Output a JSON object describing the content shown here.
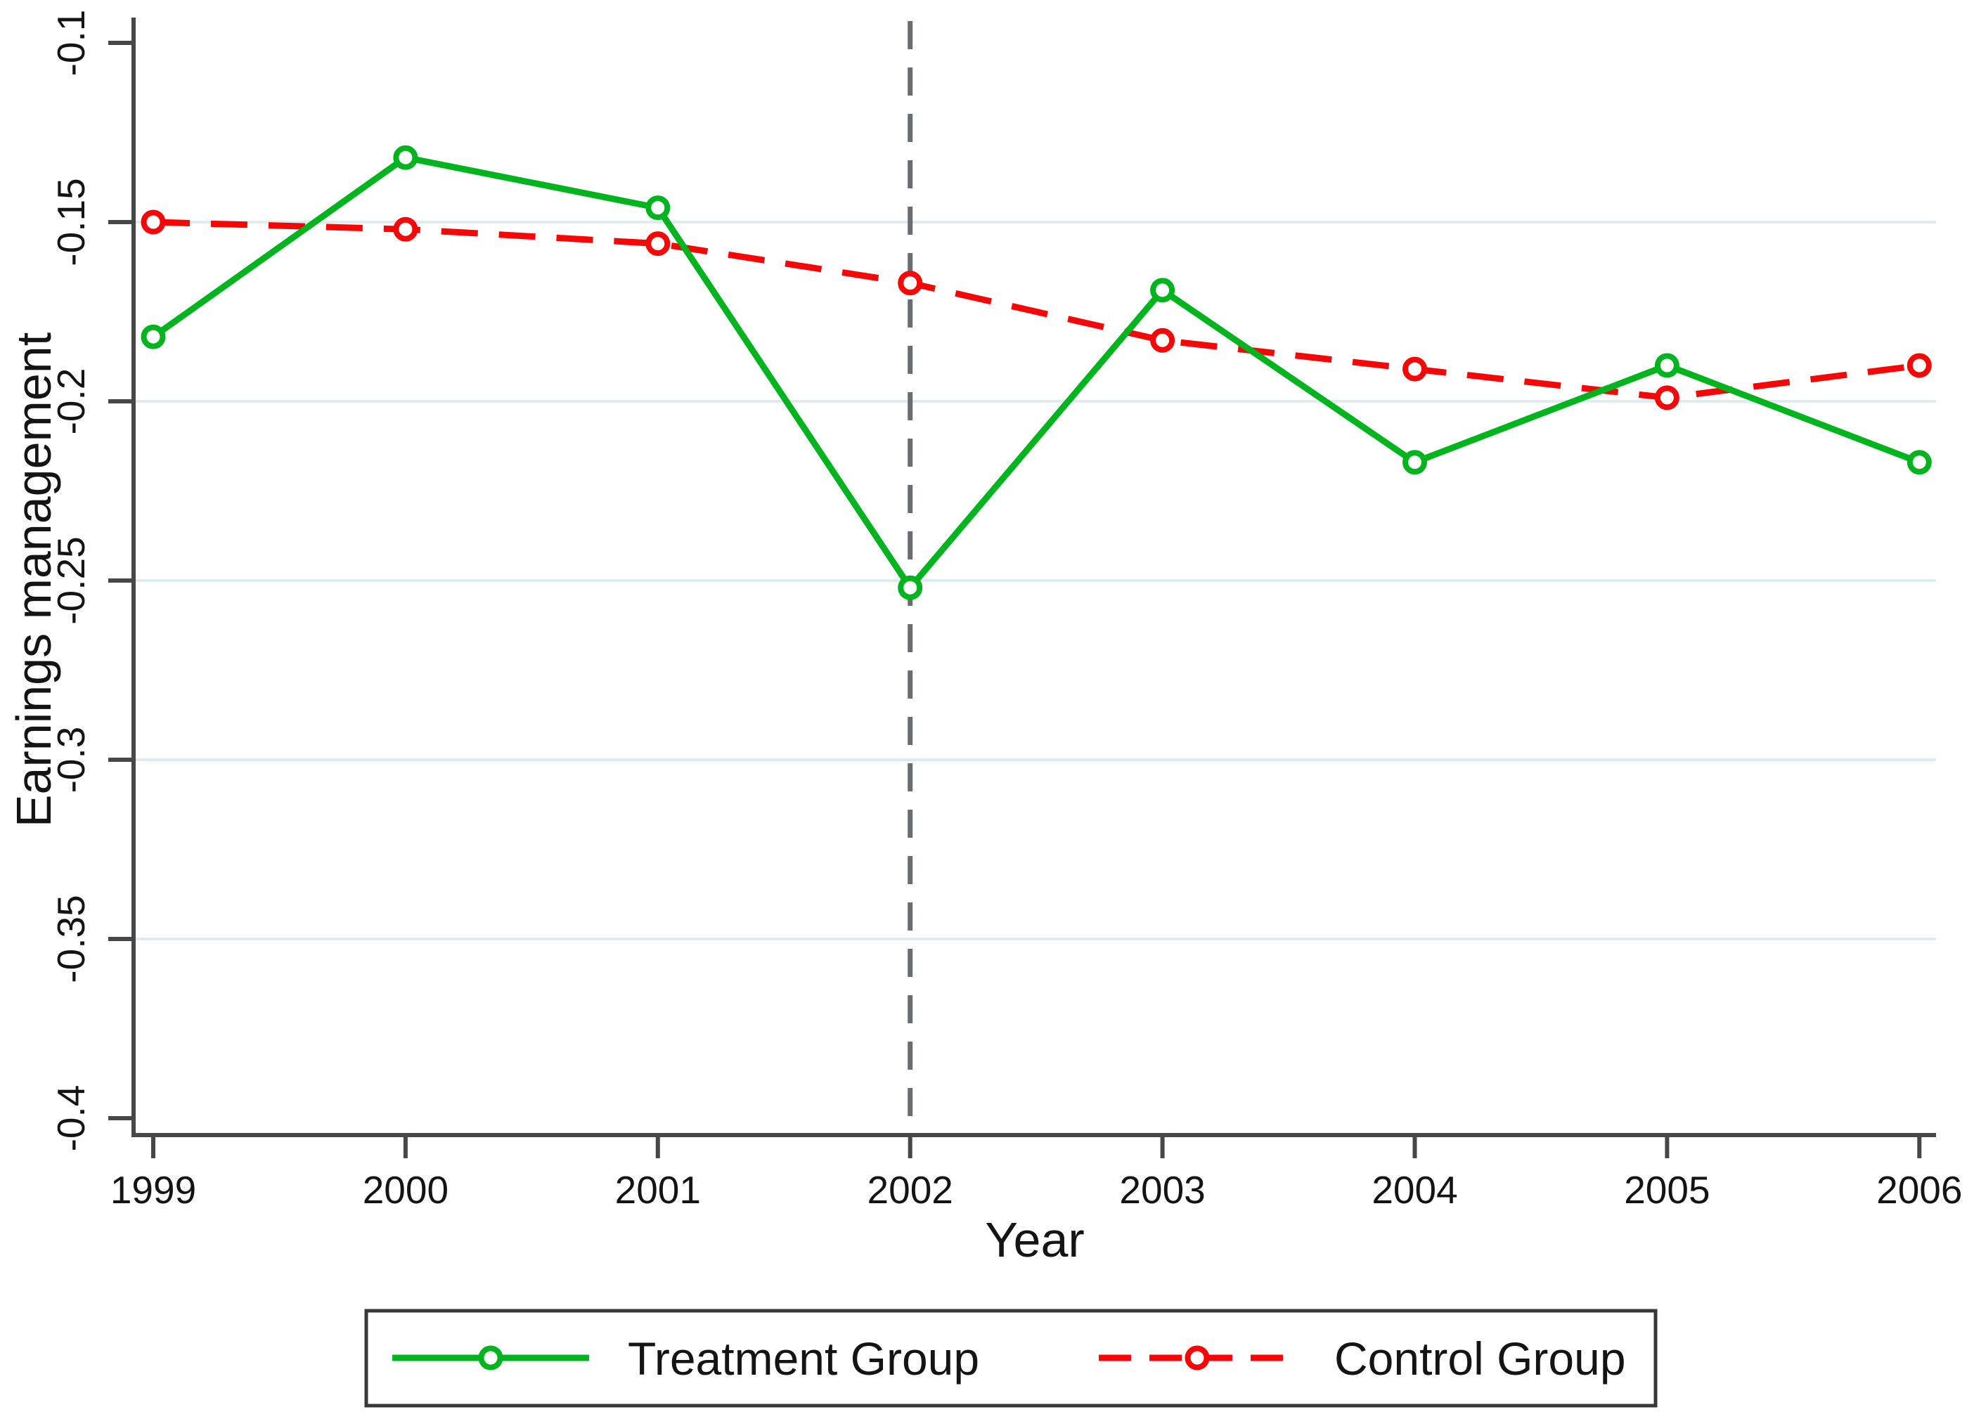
{
  "chart_data": {
    "type": "line",
    "title": "",
    "xlabel": "Year",
    "ylabel": "Earnings management",
    "x": [
      1999,
      2000,
      2001,
      2002,
      2003,
      2004,
      2005,
      2006
    ],
    "x_tick_labels": [
      "1999",
      "2000",
      "2001",
      "2002",
      "2003",
      "2004",
      "2005",
      "2006"
    ],
    "y_ticks": [
      -0.1,
      -0.15,
      -0.2,
      -0.25,
      -0.3,
      -0.35,
      -0.4
    ],
    "y_tick_labels": [
      "-0.1",
      "-0.15",
      "-0.2",
      "-0.25",
      "-0.3",
      "-0.35",
      "-0.4"
    ],
    "ylim": [
      -0.405,
      -0.093
    ],
    "grid": "horizontal",
    "gridline_values": [
      -0.15,
      -0.2,
      -0.25,
      -0.3,
      -0.35
    ],
    "reference_line_x": 2002,
    "series": [
      {
        "name": "Treatment Group",
        "color": "#00b41e",
        "line_style": "solid",
        "marker": "open-circle",
        "values": [
          -0.182,
          -0.132,
          -0.146,
          -0.252,
          -0.169,
          -0.217,
          -0.19,
          -0.217
        ]
      },
      {
        "name": "Control Group",
        "color": "#f80505",
        "line_style": "dashed",
        "marker": "open-circle",
        "values": [
          -0.15,
          -0.152,
          -0.156,
          -0.167,
          -0.183,
          -0.191,
          -0.199,
          -0.19
        ]
      }
    ],
    "legend": {
      "position": "bottom-center",
      "bordered": true
    }
  },
  "style": {
    "background": "#ffffff",
    "axis_color": "#474747",
    "tick_label_color": "#141414",
    "grid_color": "#dfebee",
    "reference_line_color": "#686d72",
    "legend_border_color": "#383838",
    "legend_fill": "#ffffff",
    "marker_fill": "#ffffff"
  }
}
